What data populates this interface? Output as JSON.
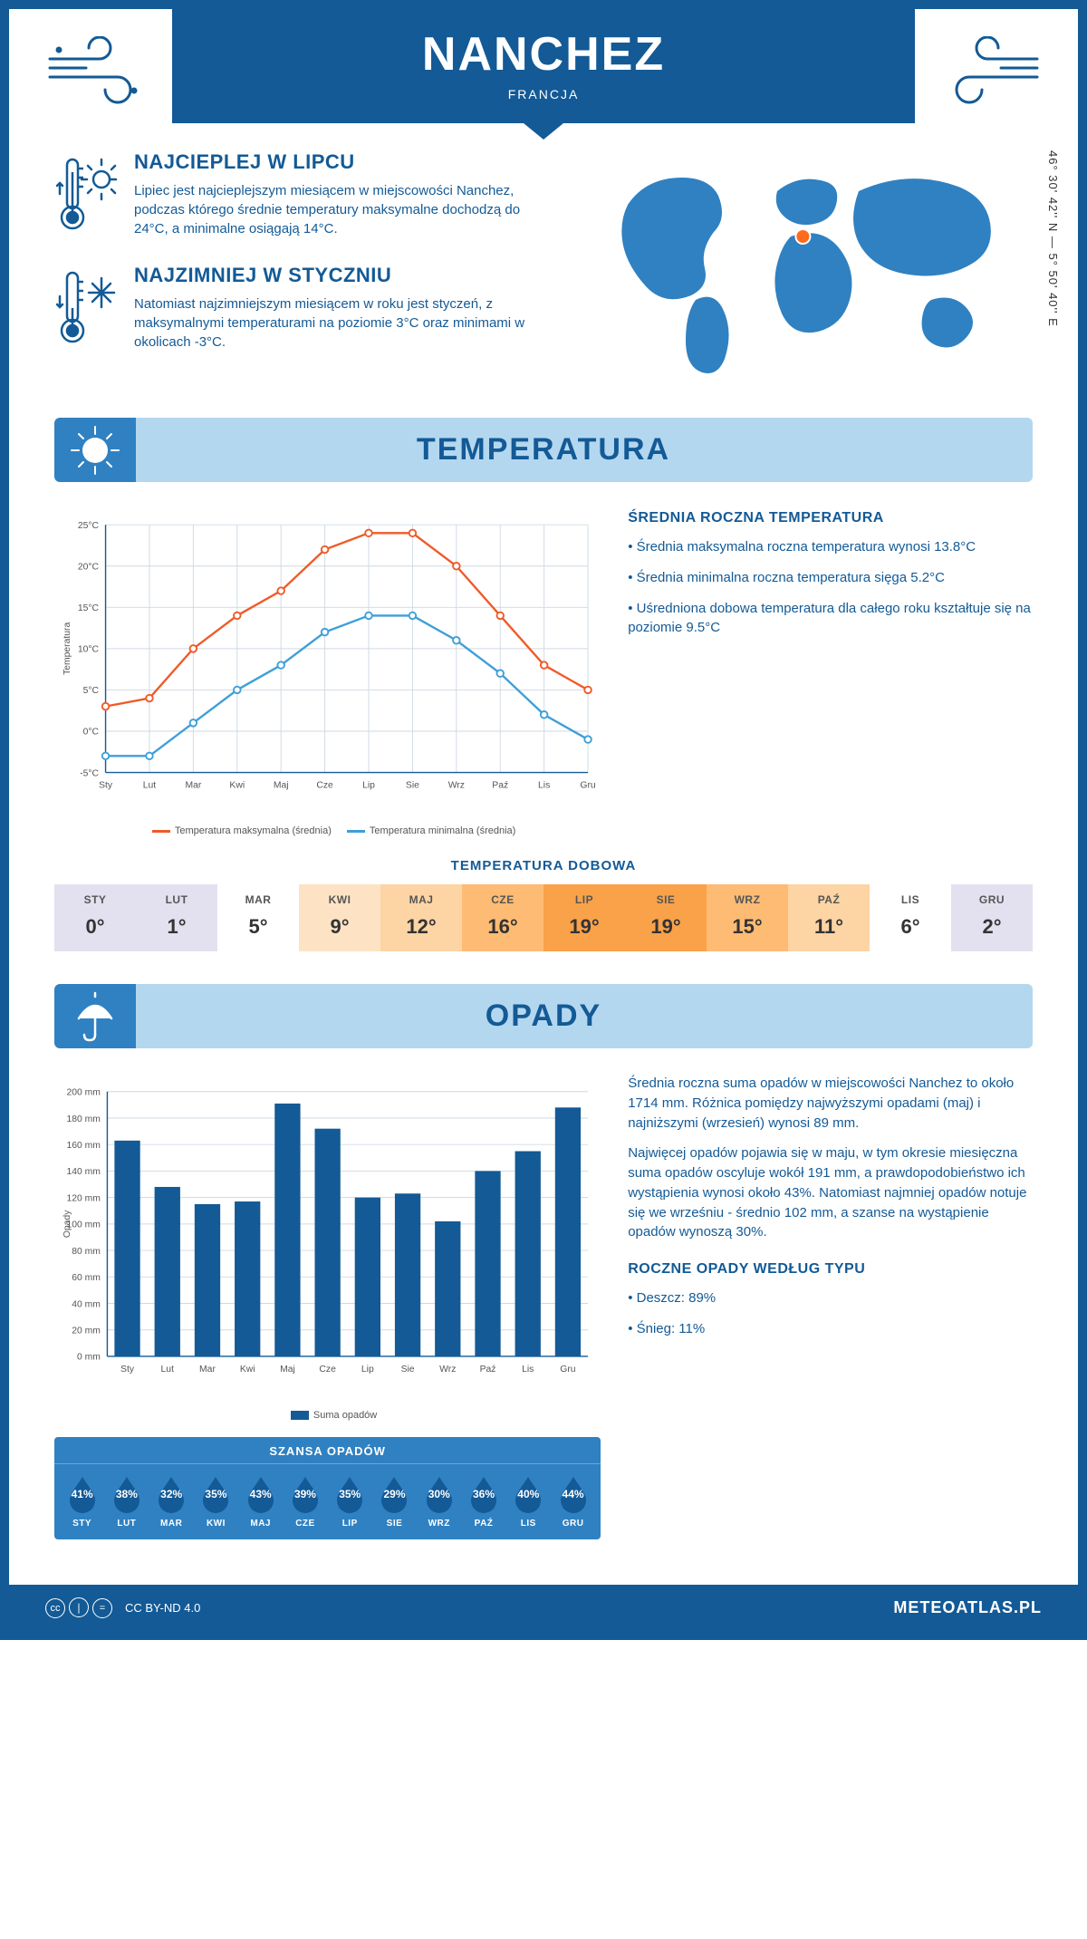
{
  "header": {
    "city": "NANCHEZ",
    "country": "FRANCJA"
  },
  "coords": "46° 30' 42'' N — 5° 50' 40'' E",
  "facts": {
    "hot": {
      "title": "NAJCIEPLEJ W LIPCU",
      "text": "Lipiec jest najcieplejszym miesiącem w miejscowości Nanchez, podczas którego średnie temperatury maksymalne dochodzą do 24°C, a minimalne osiągają 14°C."
    },
    "cold": {
      "title": "NAJZIMNIEJ W STYCZNIU",
      "text": "Natomiast najzimniejszym miesiącem w roku jest styczeń, z maksymalnymi temperaturami na poziomie 3°C oraz minimami w okolicach -3°C."
    }
  },
  "map": {
    "marker_x": 0.485,
    "marker_y": 0.38
  },
  "temperature": {
    "section_title": "TEMPERATURA",
    "months": [
      "Sty",
      "Lut",
      "Mar",
      "Kwi",
      "Maj",
      "Cze",
      "Lip",
      "Sie",
      "Wrz",
      "Paź",
      "Lis",
      "Gru"
    ],
    "max": [
      3,
      4,
      10,
      14,
      17,
      22,
      24,
      24,
      20,
      14,
      8,
      5
    ],
    "min": [
      -3,
      -3,
      1,
      5,
      8,
      12,
      14,
      14,
      11,
      7,
      2,
      -1
    ],
    "ylim": [
      -5,
      25
    ],
    "ytick_step": 5,
    "yaxis_label": "Temperatura",
    "max_color": "#f05a28",
    "min_color": "#3e9fd8",
    "grid_color": "#cfd9e3",
    "axis_color": "#135a96",
    "legend_max": "Temperatura maksymalna (średnia)",
    "legend_min": "Temperatura minimalna (średnia)",
    "annual": {
      "title": "ŚREDNIA ROCZNA TEMPERATURA",
      "b1": "• Średnia maksymalna roczna temperatura wynosi 13.8°C",
      "b2": "• Średnia minimalna roczna temperatura sięga 5.2°C",
      "b3": "• Uśredniona dobowa temperatura dla całego roku kształtuje się na poziomie 9.5°C"
    },
    "daily": {
      "title": "TEMPERATURA DOBOWA",
      "months": [
        "STY",
        "LUT",
        "MAR",
        "KWI",
        "MAJ",
        "CZE",
        "LIP",
        "SIE",
        "WRZ",
        "PAŹ",
        "LIS",
        "GRU"
      ],
      "values": [
        "0°",
        "1°",
        "5°",
        "9°",
        "12°",
        "16°",
        "19°",
        "19°",
        "15°",
        "11°",
        "6°",
        "2°"
      ],
      "colors": [
        "#e3e1ef",
        "#e3e1ef",
        "#fff",
        "#fde3c4",
        "#fdd4a4",
        "#fdbb73",
        "#f9a24a",
        "#f9a24a",
        "#fdbb73",
        "#fdd4a4",
        "#fff",
        "#e3e1ef"
      ]
    }
  },
  "precip": {
    "section_title": "OPADY",
    "months": [
      "Sty",
      "Lut",
      "Mar",
      "Kwi",
      "Maj",
      "Cze",
      "Lip",
      "Sie",
      "Wrz",
      "Paź",
      "Lis",
      "Gru"
    ],
    "values": [
      163,
      128,
      115,
      117,
      191,
      172,
      120,
      123,
      102,
      140,
      155,
      188
    ],
    "ylim": [
      0,
      200
    ],
    "ytick_step": 20,
    "yaxis_label": "Opady",
    "bar_color": "#135a96",
    "grid_color": "#cfd9e3",
    "legend": "Suma opadów",
    "text1": "Średnia roczna suma opadów w miejscowości Nanchez to około 1714 mm. Różnica pomiędzy najwyższymi opadami (maj) i najniższymi (wrzesień) wynosi 89 mm.",
    "text2": "Najwięcej opadów pojawia się w maju, w tym okresie miesięczna suma opadów oscyluje wokół 191 mm, a prawdopodobieństwo ich wystąpienia wynosi około 43%. Natomiast najmniej opadów notuje się we wrześniu - średnio 102 mm, a szanse na wystąpienie opadów wynoszą 30%.",
    "chance": {
      "title": "SZANSA OPADÓW",
      "months": [
        "STY",
        "LUT",
        "MAR",
        "KWI",
        "MAJ",
        "CZE",
        "LIP",
        "SIE",
        "WRZ",
        "PAŹ",
        "LIS",
        "GRU"
      ],
      "pct": [
        "41%",
        "38%",
        "32%",
        "35%",
        "43%",
        "39%",
        "35%",
        "29%",
        "30%",
        "36%",
        "40%",
        "44%"
      ]
    },
    "by_type": {
      "title": "ROCZNE OPADY WEDŁUG TYPU",
      "b1": "• Deszcz: 89%",
      "b2": "• Śnieg: 11%"
    }
  },
  "footer": {
    "license": "CC BY-ND 4.0",
    "brand": "METEOATLAS.PL"
  }
}
